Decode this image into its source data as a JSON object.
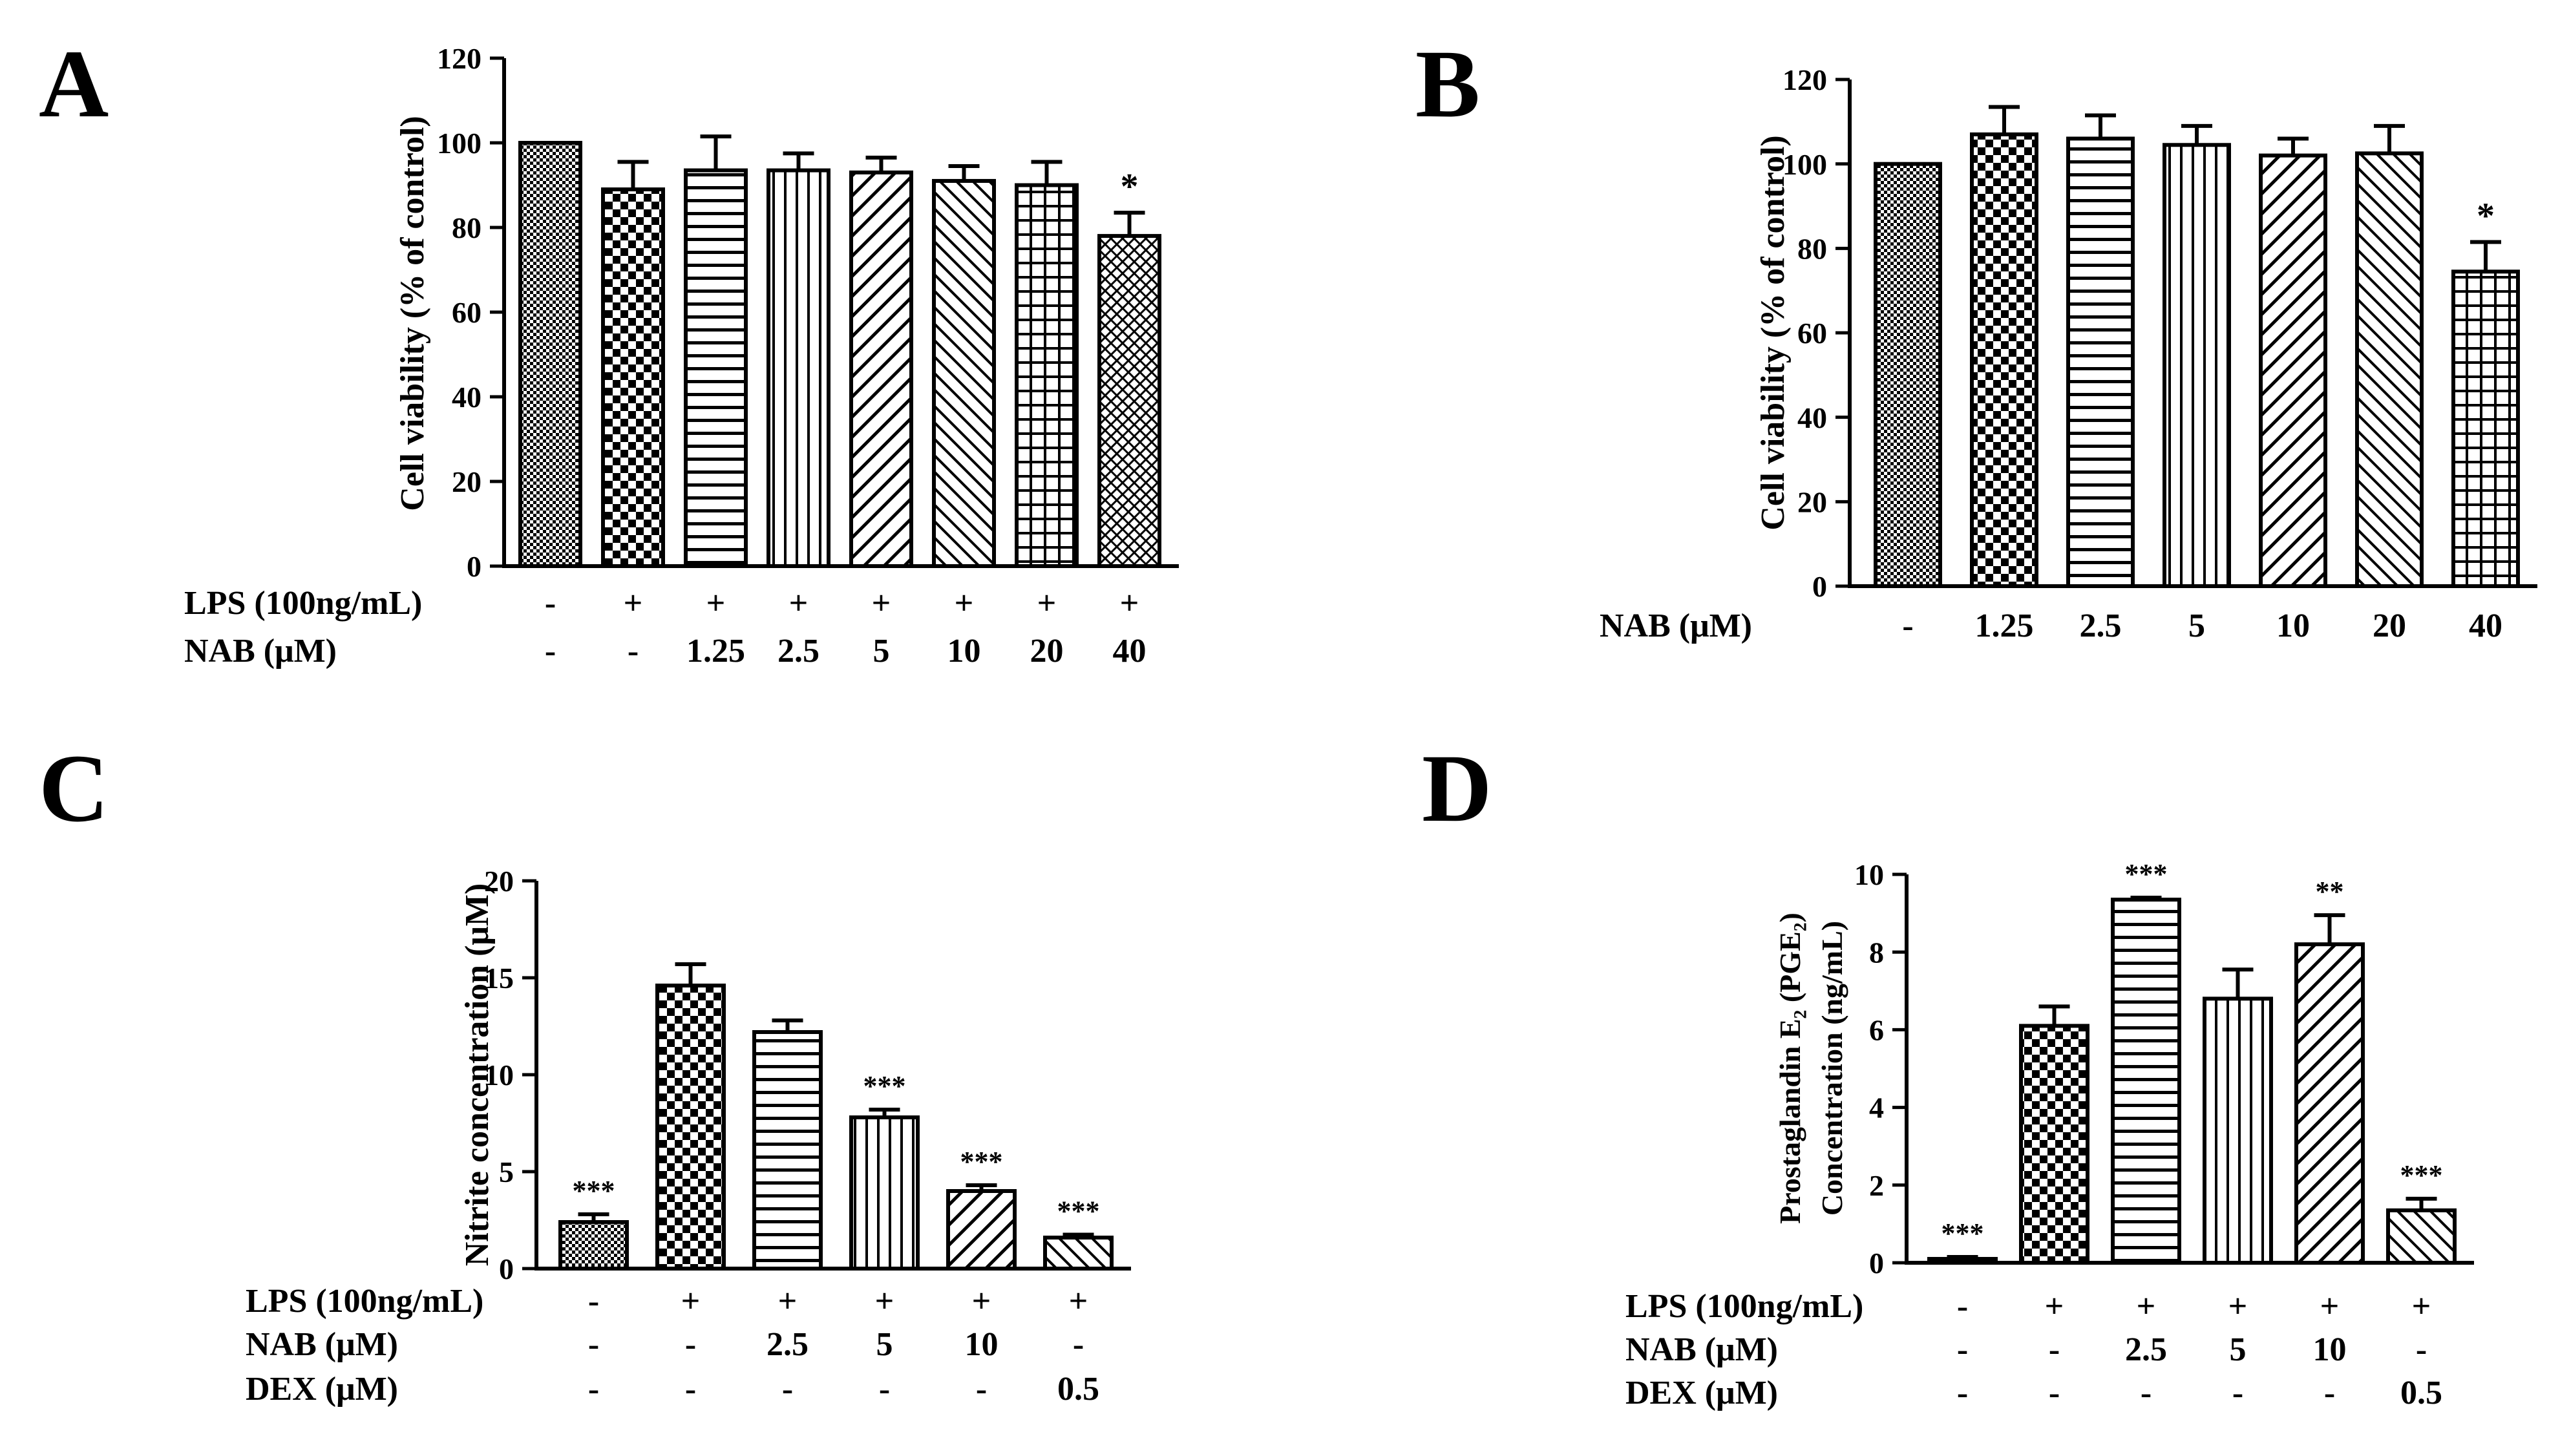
{
  "figure": {
    "panels_count": 4
  },
  "chart_data": [
    {
      "panel": "A",
      "type": "bar",
      "title": "",
      "ylabel": "Cell viability (% of control)",
      "xlabel": "",
      "ylim": [
        0,
        120
      ],
      "yticks": [
        "0",
        "20",
        "40",
        "60",
        "80",
        "100",
        "120"
      ],
      "values": [
        100,
        89,
        93.5,
        93.5,
        93,
        91,
        90,
        78
      ],
      "errors": [
        0,
        6.5,
        8,
        4,
        3.5,
        3.5,
        5.5,
        5.5
      ],
      "significance": [
        "",
        "",
        "",
        "",
        "",
        "",
        "",
        "*"
      ],
      "patterns": [
        "dense",
        "checker",
        "hlines",
        "vlines",
        "diag-fwd",
        "diag-back",
        "grid",
        "crosshatch"
      ],
      "rows": [
        {
          "label": "LPS (100ng/mL)",
          "cells": [
            "-",
            "+",
            "+",
            "+",
            "+",
            "+",
            "+",
            "+"
          ]
        },
        {
          "label": "NAB (μM)",
          "cells": [
            "-",
            "-",
            "1.25",
            "2.5",
            "5",
            "10",
            "20",
            "40"
          ]
        }
      ]
    },
    {
      "panel": "B",
      "type": "bar",
      "title": "",
      "ylabel": "Cell viability (% of control)",
      "xlabel": "",
      "ylim": [
        0,
        120
      ],
      "yticks": [
        "0",
        "20",
        "40",
        "60",
        "80",
        "100",
        "120"
      ],
      "values": [
        100,
        107,
        106,
        104.5,
        102,
        102.5,
        74.5
      ],
      "errors": [
        0,
        6.5,
        5.5,
        4.5,
        4,
        6.5,
        7
      ],
      "significance": [
        "",
        "",
        "",
        "",
        "",
        "",
        "*"
      ],
      "patterns": [
        "dense",
        "checker",
        "hlines",
        "vlines",
        "diag-fwd",
        "diag-back",
        "grid"
      ],
      "rows": [
        {
          "label": "NAB (μM)",
          "cells": [
            "-",
            "1.25",
            "2.5",
            "5",
            "10",
            "20",
            "40"
          ]
        }
      ]
    },
    {
      "panel": "C",
      "type": "bar",
      "title": "",
      "ylabel": "Nitrite concentration (μM)",
      "xlabel": "",
      "ylim": [
        0,
        20
      ],
      "yticks": [
        "0",
        "5",
        "10",
        "15",
        "20"
      ],
      "values": [
        2.4,
        14.6,
        12.2,
        7.8,
        4.0,
        1.6
      ],
      "errors": [
        0.4,
        1.1,
        0.6,
        0.4,
        0.3,
        0.15
      ],
      "significance": [
        "***",
        "",
        "",
        "***",
        "***",
        "***"
      ],
      "patterns": [
        "dense",
        "checker",
        "hlines",
        "vlines",
        "diag-fwd",
        "diag-back"
      ],
      "rows": [
        {
          "label": "LPS (100ng/mL)",
          "cells": [
            "-",
            "+",
            "+",
            "+",
            "+",
            "+"
          ]
        },
        {
          "label": "NAB (μM)",
          "cells": [
            "-",
            "-",
            "2.5",
            "5",
            "10",
            "-"
          ]
        },
        {
          "label": "DEX (μM)",
          "cells": [
            "-",
            "-",
            "-",
            "-",
            "-",
            "0.5"
          ]
        }
      ]
    },
    {
      "panel": "D",
      "type": "bar",
      "title": "",
      "ylabel": "Prostaglandin E₂ (PGE₂)",
      "ylabel2": "Concentration (ng/mL)",
      "xlabel": "",
      "ylim": [
        0,
        10
      ],
      "yticks": [
        "0",
        "2",
        "4",
        "6",
        "8",
        "10"
      ],
      "values": [
        0.1,
        6.1,
        9.35,
        6.8,
        8.2,
        1.35
      ],
      "errors": [
        0.05,
        0.5,
        0.05,
        0.75,
        0.75,
        0.3
      ],
      "significance": [
        "***",
        "",
        "***",
        "",
        "**",
        "***"
      ],
      "patterns": [
        "dense",
        "checker",
        "hlines",
        "vlines",
        "diag-fwd",
        "diag-back"
      ],
      "rows": [
        {
          "label": "LPS (100ng/mL)",
          "cells": [
            "-",
            "+",
            "+",
            "+",
            "+",
            "+"
          ]
        },
        {
          "label": "NAB (μM)",
          "cells": [
            "-",
            "-",
            "2.5",
            "5",
            "10",
            "-"
          ]
        },
        {
          "label": "DEX (μM)",
          "cells": [
            "-",
            "-",
            "-",
            "-",
            "-",
            "0.5"
          ]
        }
      ]
    }
  ]
}
